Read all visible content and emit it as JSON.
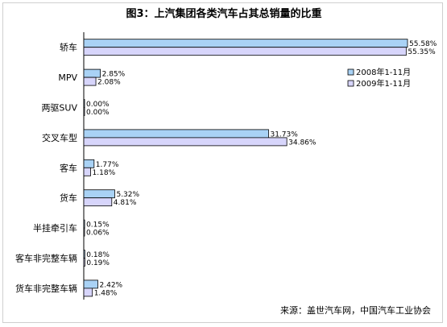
{
  "chart_data": {
    "type": "bar",
    "orientation": "horizontal",
    "title": "图3：上汽集团各类汽车占其总销量的比重",
    "categories": [
      "轿车",
      "MPV",
      "两驱SUV",
      "交叉车型",
      "客车",
      "货车",
      "半挂牵引车",
      "客车非完整车辆",
      "货车非完整车辆"
    ],
    "series": [
      {
        "name": "2008年1-11月",
        "color": "#a9d2f5",
        "values": [
          55.58,
          2.85,
          0.0,
          31.73,
          1.77,
          5.32,
          0.15,
          0.18,
          2.42
        ],
        "labels": [
          "55.58%",
          "2.85%",
          "0.00%",
          "31.73%",
          "1.77%",
          "5.32%",
          "0.15%",
          "0.18%",
          "2.42%"
        ]
      },
      {
        "name": "2009年1-11月",
        "color": "#d7d5fb",
        "values": [
          55.35,
          2.08,
          0.0,
          34.86,
          1.18,
          4.81,
          0.06,
          0.19,
          1.48
        ],
        "labels": [
          "55.35%",
          "2.08%",
          "0.00%",
          "34.86%",
          "1.18%",
          "4.81%",
          "0.06%",
          "0.19%",
          "1.48%"
        ]
      }
    ],
    "xlim": [
      0,
      55.58
    ],
    "grid": false,
    "legend_position": "right",
    "source": "来源：盖世汽车网，中国汽车工业协会"
  }
}
